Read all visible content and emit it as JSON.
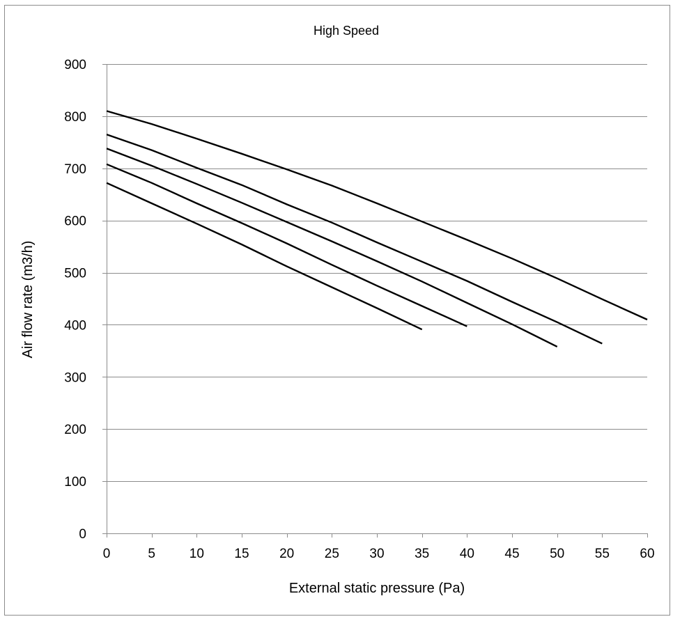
{
  "chart_data": {
    "type": "line",
    "title": "High Speed",
    "xlabel": "External static pressure (Pa)",
    "ylabel": "Air flow rate (m3/h)",
    "xlim": [
      0,
      60
    ],
    "ylim": [
      0,
      900
    ],
    "xticks": [
      0,
      5,
      10,
      15,
      20,
      25,
      30,
      35,
      40,
      45,
      50,
      55,
      60
    ],
    "yticks": [
      0,
      100,
      200,
      300,
      400,
      500,
      600,
      700,
      800,
      900
    ],
    "grid": "horizontal",
    "legend": "none",
    "line_color": "#000000",
    "series": [
      {
        "x": [
          0,
          5,
          10,
          15,
          20,
          25,
          30,
          35,
          40,
          45,
          50,
          55,
          60
        ],
        "values": [
          810,
          785,
          757,
          728,
          698,
          667,
          633,
          598,
          563,
          527,
          489,
          449,
          410
        ]
      },
      {
        "x": [
          0,
          5,
          10,
          15,
          20,
          25,
          30,
          35,
          40,
          45,
          50,
          55
        ],
        "values": [
          765,
          735,
          701,
          668,
          631,
          596,
          558,
          521,
          484,
          444,
          405,
          364
        ]
      },
      {
        "x": [
          0,
          5,
          10,
          15,
          20,
          25,
          30,
          35,
          40,
          45,
          50
        ],
        "values": [
          738,
          705,
          670,
          634,
          597,
          560,
          522,
          483,
          442,
          401,
          358
        ]
      },
      {
        "x": [
          0,
          5,
          10,
          15,
          20,
          25,
          30,
          35,
          40
        ],
        "values": [
          708,
          672,
          633,
          595,
          556,
          515,
          475,
          436,
          397
        ]
      },
      {
        "x": [
          0,
          5,
          10,
          15,
          20,
          25,
          30,
          35
        ],
        "values": [
          672,
          633,
          594,
          554,
          512,
          472,
          432,
          391
        ]
      }
    ]
  }
}
